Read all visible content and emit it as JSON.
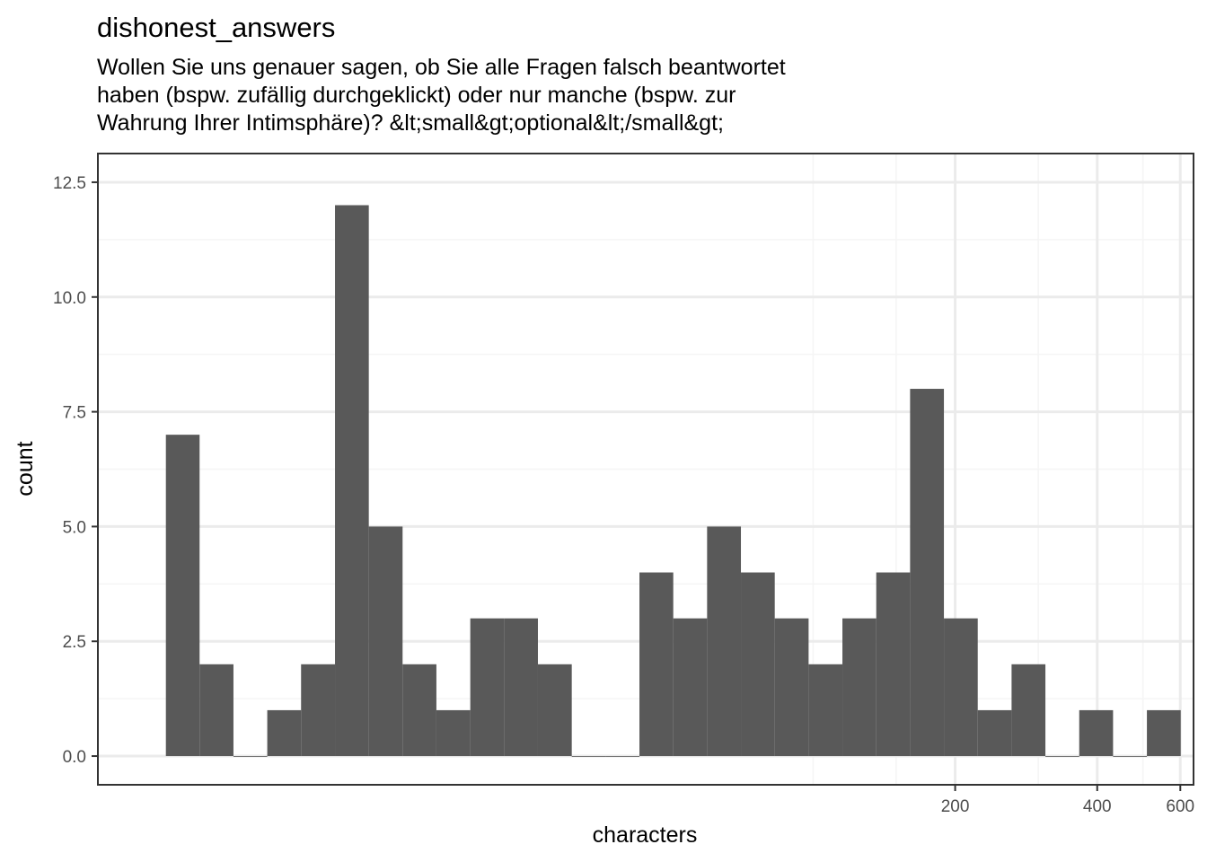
{
  "chart_data": {
    "type": "bar",
    "title": "dishonest_answers",
    "subtitle": [
      "Wollen Sie uns genauer sagen, ob Sie alle Fragen falsch beantwortet",
      "haben (bspw. zufällig durchgeklickt) oder nur manche (bspw. zur",
      "Wahrung Ihrer Intimsphäre)? &lt;small&gt;optional&lt;/small&gt;"
    ],
    "xlabel": "characters",
    "ylabel": "count",
    "x_scale": "log10",
    "xlim": [
      3.05,
      640
    ],
    "ylim": [
      -0.625,
      13.125
    ],
    "x_ticks": [
      {
        "value": 200,
        "label": "200"
      },
      {
        "value": 400,
        "label": "400"
      },
      {
        "value": 600,
        "label": "600"
      }
    ],
    "x_minor_ticks": [
      100,
      150,
      300,
      500
    ],
    "y_ticks": [
      {
        "value": 0,
        "label": "0.0"
      },
      {
        "value": 2.5,
        "label": "2.5"
      },
      {
        "value": 5,
        "label": "5.0"
      },
      {
        "value": 7.5,
        "label": "7.5"
      },
      {
        "value": 10,
        "label": "10.0"
      },
      {
        "value": 12.5,
        "label": "12.5"
      }
    ],
    "y_minor_ticks": [
      1.25,
      3.75,
      6.25,
      8.75,
      11.25
    ],
    "bin_edges": [
      4.25,
      5.01,
      5.91,
      6.97,
      8.22,
      9.7,
      11.44,
      13.49,
      15.91,
      18.77,
      22.14,
      26.11,
      30.8,
      36.33,
      42.85,
      50.54,
      59.61,
      70.31,
      82.93,
      97.82,
      115.37,
      136.08,
      160.51,
      189.32,
      223.3,
      263.38,
      310.65,
      366.41,
      432.18,
      509.75
    ],
    "counts": [
      7,
      2,
      0,
      1,
      2,
      12,
      5,
      2,
      1,
      3,
      3,
      2,
      0,
      0,
      4,
      3,
      5,
      4,
      3,
      2,
      3,
      4,
      8,
      3,
      1,
      2,
      0,
      1,
      0,
      1
    ],
    "colors": {
      "bar": "#595959",
      "grid_major": "#ebebeb",
      "grid_minor": "#f5f5f5",
      "panel_border": "#333333"
    },
    "grid": true,
    "legend": "none"
  }
}
